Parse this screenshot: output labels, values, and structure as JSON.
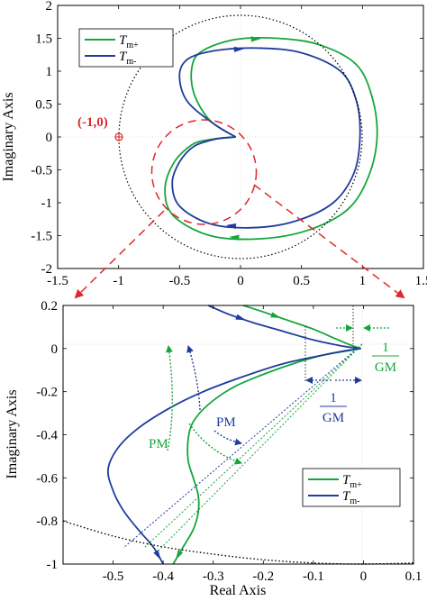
{
  "colors": {
    "green": "#15a53c",
    "blue": "#1f3c9c",
    "red": "#e0262b",
    "black": "#000000"
  },
  "chart_data": [
    {
      "type": "line",
      "title": "",
      "xlabel": "",
      "ylabel": "Imaginary Axis",
      "xlim": [
        -1.5,
        1.5
      ],
      "ylim": [
        -2,
        2
      ],
      "xticks": [
        -1.5,
        -1,
        -0.5,
        0,
        0.5,
        1,
        1.5
      ],
      "xtick_labels": [
        "-1.5",
        "-1",
        "-0.5",
        "0",
        "0.5",
        "1",
        "1.5"
      ],
      "yticks": [
        2,
        1.5,
        1,
        0.5,
        0,
        -0.5,
        -1,
        -1.5,
        -2
      ],
      "ytick_labels": [
        "2",
        "1.5",
        "1",
        "0.5",
        "0",
        "-0.5",
        "-1",
        "-1.5",
        "-2"
      ],
      "legend": {
        "placement": "top-left",
        "entries": [
          "T_m+",
          "T_m-"
        ]
      },
      "annotation": {
        "text": "(-1,0)",
        "x": -1,
        "y": 0
      },
      "zoom_circle": {
        "center": [
          -0.3,
          -0.27
        ],
        "radius": 0.4
      },
      "unit_circle": {
        "center": [
          0,
          0
        ],
        "radius": 1
      },
      "series": [
        {
          "name": "T_m+",
          "x": [
            -0.04,
            -0.25,
            -0.38,
            -0.4,
            -0.32,
            -0.05,
            0.3,
            0.65,
            0.95,
            1.08,
            1.12,
            1.05,
            0.88,
            0.55,
            0.15,
            -0.25,
            -0.55,
            -0.62,
            -0.55,
            -0.4,
            -0.25,
            -0.04
          ],
          "y": [
            0.0,
            0.25,
            0.65,
            1.05,
            1.3,
            1.48,
            1.5,
            1.4,
            1.1,
            0.6,
            0.0,
            -0.6,
            -1.1,
            -1.42,
            -1.55,
            -1.5,
            -1.2,
            -0.8,
            -0.4,
            -0.12,
            -0.04,
            0.0
          ]
        },
        {
          "name": "T_m-",
          "x": [
            -0.04,
            -0.22,
            -0.44,
            -0.5,
            -0.42,
            -0.18,
            0.15,
            0.5,
            0.82,
            0.95,
            0.98,
            0.93,
            0.76,
            0.45,
            0.1,
            -0.25,
            -0.5,
            -0.56,
            -0.5,
            -0.38,
            -0.2,
            -0.04
          ],
          "y": [
            0.0,
            0.2,
            0.55,
            0.95,
            1.2,
            1.32,
            1.35,
            1.28,
            1.0,
            0.55,
            0.0,
            -0.55,
            -1.0,
            -1.28,
            -1.38,
            -1.32,
            -1.05,
            -0.7,
            -0.38,
            -0.14,
            -0.03,
            0.0
          ]
        }
      ]
    },
    {
      "type": "line",
      "title": "",
      "xlabel": "Real Axis",
      "ylabel": "Imaginary Axis",
      "xlim": [
        -0.6,
        0.1
      ],
      "ylim": [
        -1,
        0.2
      ],
      "xticks": [
        -0.5,
        -0.4,
        -0.3,
        -0.2,
        -0.1,
        0,
        0.1
      ],
      "xtick_labels": [
        "-0.5",
        "-0.4",
        "-0.3",
        "-0.2",
        "-0.1",
        "0",
        "0.1"
      ],
      "yticks": [
        0.2,
        0,
        -0.2,
        -0.4,
        -0.6,
        -0.8,
        -1
      ],
      "ytick_labels": [
        "0.2",
        "0",
        "-0.2",
        "-0.4",
        "-0.6",
        "-0.8",
        "-1"
      ],
      "legend": {
        "placement": "bottom-right",
        "entries": [
          "T_m+",
          "T_m-"
        ]
      },
      "annotations": {
        "pm_green": "PM",
        "pm_blue": "PM",
        "gm_green_num": "1",
        "gm_green_den": "GM",
        "gm_blue_num": "1",
        "gm_blue_den": "GM"
      },
      "series": [
        {
          "name": "T_m+",
          "x": [
            -0.24,
            -0.2,
            -0.15,
            -0.1,
            -0.06,
            -0.03,
            -0.012,
            -0.005
          ],
          "y": [
            0.2,
            0.17,
            0.13,
            0.09,
            0.05,
            0.02,
            0.005,
            0.0
          ]
        },
        {
          "name": "T_m+",
          "x": [
            -0.005,
            -0.03,
            -0.08,
            -0.14,
            -0.2,
            -0.26,
            -0.31,
            -0.34,
            -0.35,
            -0.35,
            -0.34,
            -0.33,
            -0.33,
            -0.34,
            -0.36,
            -0.38
          ],
          "y": [
            0.0,
            -0.01,
            -0.03,
            -0.07,
            -0.12,
            -0.18,
            -0.26,
            -0.34,
            -0.42,
            -0.52,
            -0.6,
            -0.68,
            -0.76,
            -0.84,
            -0.92,
            -1.0
          ]
        },
        {
          "name": "T_m-",
          "x": [
            -0.31,
            -0.27,
            -0.22,
            -0.16,
            -0.1,
            -0.05,
            -0.02,
            -0.005
          ],
          "y": [
            0.2,
            0.16,
            0.12,
            0.08,
            0.04,
            0.015,
            0.004,
            0.0
          ]
        },
        {
          "name": "T_m-",
          "x": [
            -0.005,
            -0.03,
            -0.08,
            -0.16,
            -0.24,
            -0.32,
            -0.39,
            -0.45,
            -0.49,
            -0.51,
            -0.5,
            -0.48,
            -0.45,
            -0.42,
            -0.4
          ],
          "y": [
            0.0,
            -0.008,
            -0.03,
            -0.07,
            -0.13,
            -0.2,
            -0.28,
            -0.37,
            -0.46,
            -0.56,
            -0.66,
            -0.75,
            -0.84,
            -0.92,
            -1.0
          ]
        },
        {
          "name": "unit circle",
          "x": [
            -0.6,
            -0.5,
            -0.4,
            -0.3,
            -0.2,
            -0.1,
            0.0,
            0.1
          ],
          "y": [
            -0.8,
            -0.87,
            -0.92,
            -0.954,
            -0.98,
            -0.995,
            -1.0,
            -0.995
          ]
        }
      ]
    }
  ]
}
